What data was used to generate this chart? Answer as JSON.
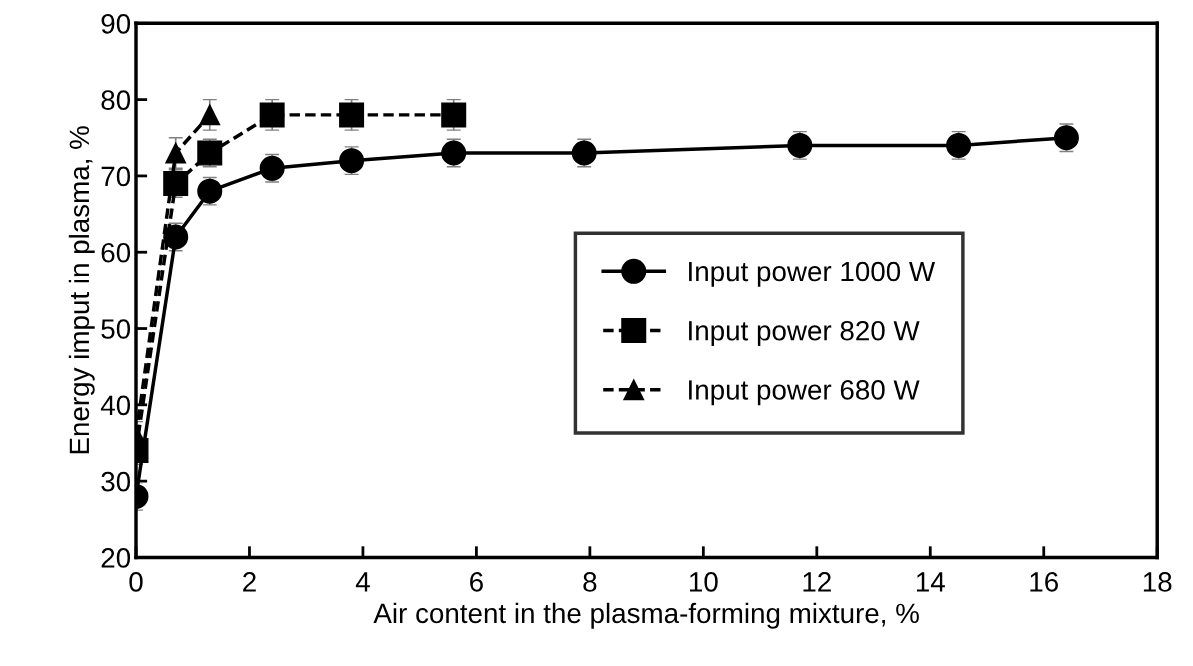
{
  "chart_data": {
    "type": "line",
    "xlabel": "Air content in the plasma-forming mixture, %",
    "ylabel": "Energy imput in plasma, %",
    "xlim": [
      0,
      18
    ],
    "ylim": [
      20,
      90
    ],
    "xticks": [
      0,
      2,
      4,
      6,
      8,
      10,
      12,
      14,
      16,
      18
    ],
    "yticks": [
      20,
      30,
      40,
      50,
      60,
      70,
      80,
      90
    ],
    "grid": false,
    "legend": "center",
    "series": [
      {
        "name": "Input power 1000 W",
        "color": "#000000",
        "marker": "circle",
        "line_style": "solid",
        "x": [
          0,
          0.7,
          1.3,
          2.4,
          3.8,
          5.6,
          7.9,
          11.7,
          14.5,
          16.4
        ],
        "values": [
          28,
          62,
          68,
          71,
          72,
          73,
          73,
          74,
          74,
          75
        ],
        "errors": [
          1.8,
          1.8,
          1.8,
          1.8,
          1.8,
          1.8,
          1.8,
          1.8,
          1.8,
          1.8
        ]
      },
      {
        "name": "Input power 820 W",
        "color": "#000000",
        "marker": "square",
        "line_style": "dashed",
        "x": [
          0,
          0.7,
          1.3,
          2.4,
          3.8,
          5.6
        ],
        "values": [
          34,
          69,
          73,
          78,
          78,
          78
        ],
        "errors": [
          1.8,
          1.8,
          1.8,
          2,
          2,
          2
        ]
      },
      {
        "name": "Input power 680 W",
        "color": "#000000",
        "marker": "triangle",
        "line_style": "dashed",
        "x": [
          0,
          0.7,
          1.3
        ],
        "values": [
          36,
          73,
          78
        ],
        "errors": [
          1.8,
          2,
          2
        ]
      }
    ]
  }
}
